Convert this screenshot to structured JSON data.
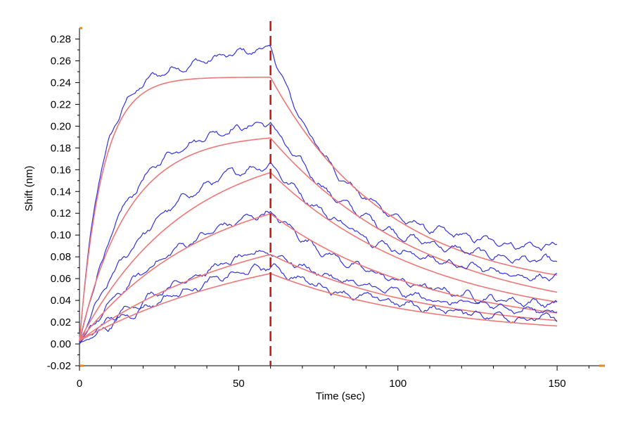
{
  "chart_data": {
    "type": "line",
    "title": "",
    "xlabel": "Time (sec)",
    "ylabel": "Shift (nm)",
    "xlim": [
      0,
      165
    ],
    "ylim": [
      -0.02,
      0.29
    ],
    "xticks": [
      0,
      50,
      100,
      150
    ],
    "xtick_labels": [
      "0",
      "50",
      "100",
      "150"
    ],
    "yticks": [
      -0.02,
      0.0,
      0.02,
      0.04,
      0.06,
      0.08,
      0.1,
      0.12,
      0.14,
      0.16,
      0.18,
      0.2,
      0.22,
      0.24,
      0.26,
      0.28
    ],
    "ytick_labels": [
      "-0.02",
      "0.00",
      "0.02",
      "0.04",
      "0.06",
      "0.08",
      "0.10",
      "0.12",
      "0.14",
      "0.16",
      "0.18",
      "0.20",
      "0.22",
      "0.24",
      "0.26",
      "0.28"
    ],
    "grid": false,
    "legend": "none",
    "dissociation_start": 60,
    "end_time": 150,
    "colors": {
      "measured": "#3333dd",
      "fit": "#ee7777",
      "marker": "#cc1111",
      "axis_end": "#e08a1e"
    },
    "series": [
      {
        "kind": "pair",
        "measured_assoc_end": 0.272,
        "measured_end": 0.089,
        "fit_plateau": 0.242,
        "fit_end": 0.063,
        "fit_rate": 0.14,
        "measured_rate": 0.15,
        "fit_decay": 0.027,
        "measured_decay": 0.045,
        "measured_plateau": 0.245,
        "measured_drift": 0.00055
      },
      {
        "kind": "pair",
        "measured_assoc_end": 0.203,
        "measured_end": 0.075,
        "fit_plateau": 0.19,
        "fit_end": 0.047,
        "fit_rate": 0.065,
        "measured_rate": 0.065,
        "fit_decay": 0.02,
        "measured_decay": 0.035
      },
      {
        "kind": "pair",
        "measured_assoc_end": 0.166,
        "measured_end": 0.061,
        "fit_plateau": 0.185,
        "fit_end": 0.038,
        "fit_rate": 0.03,
        "measured_rate": 0.04,
        "fit_decay": 0.02,
        "measured_decay": 0.03
      },
      {
        "kind": "pair",
        "measured_assoc_end": 0.121,
        "measured_end": 0.037,
        "fit_plateau": 0.15,
        "fit_end": 0.028,
        "fit_rate": 0.025,
        "measured_rate": 0.03,
        "fit_decay": 0.02,
        "measured_decay": 0.03
      },
      {
        "kind": "pair",
        "measured_assoc_end": 0.085,
        "measured_end": 0.03,
        "fit_plateau": 0.12,
        "fit_end": 0.021,
        "fit_rate": 0.018,
        "measured_rate": 0.022,
        "fit_decay": 0.02,
        "measured_decay": 0.025
      },
      {
        "kind": "pair",
        "measured_assoc_end": 0.071,
        "measured_end": 0.023,
        "fit_plateau": 0.1,
        "fit_end": 0.016,
        "fit_rate": 0.016,
        "measured_rate": 0.02,
        "fit_decay": 0.02,
        "measured_decay": 0.025
      }
    ]
  }
}
